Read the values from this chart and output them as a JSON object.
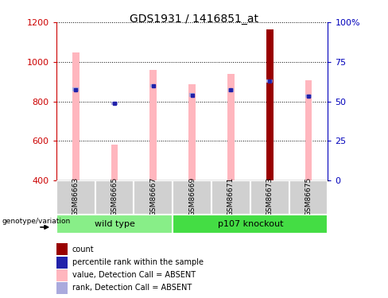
{
  "title": "GDS1931 / 1416851_at",
  "samples": [
    "GSM86663",
    "GSM86665",
    "GSM86667",
    "GSM86669",
    "GSM86671",
    "GSM86673",
    "GSM86675"
  ],
  "ylim_left": [
    400,
    1200
  ],
  "ylim_right": [
    0,
    100
  ],
  "yticks_left": [
    400,
    600,
    800,
    1000,
    1200
  ],
  "yticks_right": [
    0,
    25,
    50,
    75,
    100
  ],
  "ytick_labels_right": [
    "0",
    "25",
    "50",
    "75",
    "100%"
  ],
  "bar_base": 400,
  "pink_bar_color": "#FFB6BE",
  "light_blue_color": "#AAAADD",
  "red_bar_color": "#990000",
  "blue_dot_color": "#2222AA",
  "value_bars": [
    1048,
    580,
    960,
    885,
    940,
    1165,
    908
  ],
  "rank_vals": [
    860,
    790,
    878,
    832,
    857,
    902,
    826
  ],
  "is_red": [
    false,
    false,
    false,
    false,
    false,
    true,
    false
  ],
  "label_color_left": "#CC0000",
  "label_color_right": "#0000BB",
  "genotype_label": "genotype/variation",
  "wt_color": "#88EE88",
  "ko_color": "#44DD44",
  "sample_box_color": "#D0D0D0",
  "legend_items": [
    {
      "label": "count",
      "color": "#990000"
    },
    {
      "label": "percentile rank within the sample",
      "color": "#2222AA"
    },
    {
      "label": "value, Detection Call = ABSENT",
      "color": "#FFB6BE"
    },
    {
      "label": "rank, Detection Call = ABSENT",
      "color": "#AAAADD"
    }
  ]
}
